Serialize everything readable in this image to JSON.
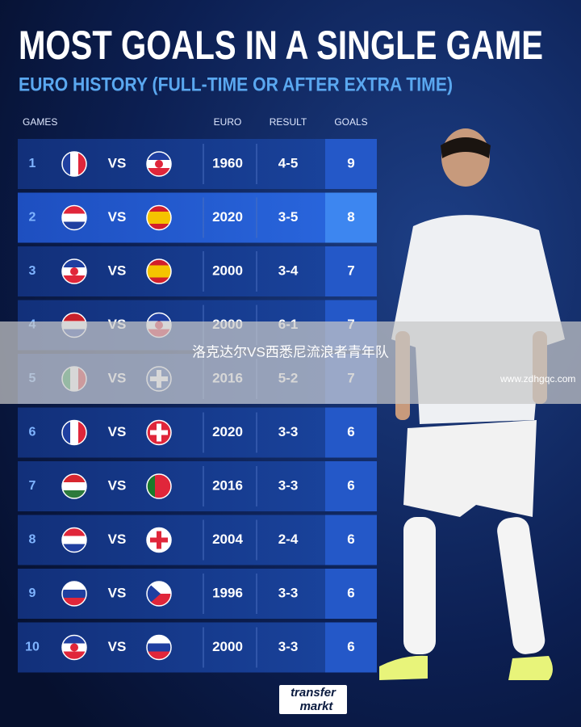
{
  "header": {
    "title": "MOST GOALS IN A SINGLE GAME",
    "subtitle": "EURO HISTORY (FULL-TIME OR AFTER EXTRA TIME)"
  },
  "table": {
    "columns": [
      "GAMES",
      "EURO",
      "RESULT",
      "GOALS"
    ],
    "vs": "VS",
    "rows": [
      {
        "rank": 1,
        "euro": 1960,
        "result": "4-5",
        "goals": 9
      },
      {
        "rank": 2,
        "euro": 2020,
        "result": "3-5",
        "goals": 8
      },
      {
        "rank": 3,
        "euro": 2000,
        "result": "3-4",
        "goals": 7
      },
      {
        "rank": 4,
        "euro": 2000,
        "result": "6-1",
        "goals": 7
      },
      {
        "rank": 5,
        "euro": 2016,
        "result": "5-2",
        "goals": 7
      },
      {
        "rank": 6,
        "euro": 2020,
        "result": "3-3",
        "goals": 6
      },
      {
        "rank": 7,
        "euro": 2016,
        "result": "3-3",
        "goals": 6
      },
      {
        "rank": 8,
        "euro": 2004,
        "result": "2-4",
        "goals": 6
      },
      {
        "rank": 9,
        "euro": 1996,
        "result": "3-3",
        "goals": 6
      },
      {
        "rank": 10,
        "euro": 2000,
        "result": "3-3",
        "goals": 6
      }
    ]
  },
  "overlay": {
    "caption": "洛克达尔VS西悉尼流浪者青年队",
    "watermark": "www.zdhgqc.com"
  },
  "logo": {
    "line1": "transfer",
    "line2": "markt"
  }
}
